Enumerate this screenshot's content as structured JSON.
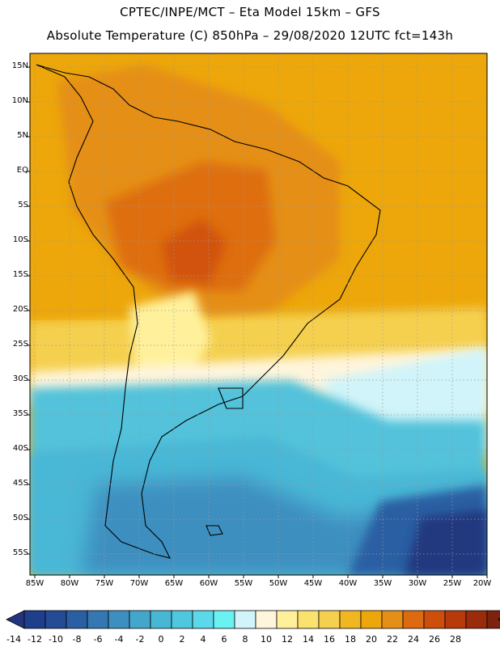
{
  "title": {
    "line1": "CPTEC/INPE/MCT –  Eta Model 15km – GFS",
    "line2": "Absolute Temperature (C) 850hPa – 29/08/2020 12UTC fct=143h"
  },
  "latitude_labels": [
    "15N",
    "10N",
    "5N",
    "EQ",
    "5S",
    "10S",
    "15S",
    "20S",
    "25S",
    "30S",
    "35S",
    "40S",
    "45S",
    "50S",
    "55S"
  ],
  "longitude_labels": [
    "85W",
    "80W",
    "75W",
    "70W",
    "65W",
    "60W",
    "55W",
    "50W",
    "45W",
    "40W",
    "35W",
    "30W",
    "25W",
    "20W"
  ],
  "colorbar": {
    "labels": [
      "-14",
      "-12",
      "-10",
      "-8",
      "-6",
      "-4",
      "-2",
      "0",
      "2",
      "4",
      "6",
      "8",
      "10",
      "12",
      "14",
      "16",
      "18",
      "20",
      "22",
      "24",
      "26",
      "28"
    ],
    "colors": [
      "#1e3f8c",
      "#244b96",
      "#2b5fa3",
      "#3477b3",
      "#3d8fc0",
      "#45a6cc",
      "#48b7d6",
      "#4fc7df",
      "#5bd8ea",
      "#6af2f2",
      "#d0f4f9",
      "#fff5dc",
      "#fff19c",
      "#fbe16e",
      "#f5d050",
      "#f0b722",
      "#eda70a",
      "#e58f18",
      "#dd6911",
      "#ce4e0c",
      "#b83a0a",
      "#9a2b0b",
      "#7d220c"
    ],
    "underflow_color": "#24347e",
    "overflow_color": "#7d0022"
  },
  "palette": {
    "land_outline": "#000000",
    "grid": "#9a9a9a",
    "cold_deep": "#20397f",
    "cold": "#3f9fc6",
    "cool": "#52c2da",
    "light": "#d0f4f9",
    "cream": "#fff5dc",
    "yellow": "#fbe16e",
    "warm": "#eda70a",
    "hot": "#e58f18",
    "hotter": "#dd6911"
  }
}
